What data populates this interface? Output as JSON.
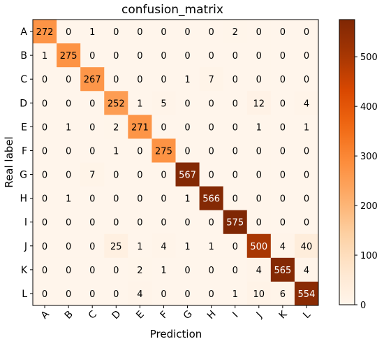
{
  "chart_data": {
    "type": "heatmap",
    "title": "confusion_matrix",
    "xlabel": "Prediction",
    "ylabel": "Real label",
    "x_labels": [
      "A",
      "B",
      "C",
      "D",
      "E",
      "F",
      "G",
      "H",
      "I",
      "J",
      "K",
      "L"
    ],
    "y_labels": [
      "A",
      "B",
      "C",
      "D",
      "E",
      "F",
      "G",
      "H",
      "I",
      "J",
      "K",
      "L"
    ],
    "matrix": [
      [
        272,
        0,
        1,
        0,
        0,
        0,
        0,
        0,
        2,
        0,
        0,
        0
      ],
      [
        1,
        275,
        0,
        0,
        0,
        0,
        0,
        0,
        0,
        0,
        0,
        0
      ],
      [
        0,
        0,
        267,
        0,
        0,
        0,
        1,
        7,
        0,
        0,
        0,
        0
      ],
      [
        0,
        0,
        0,
        252,
        1,
        5,
        0,
        0,
        0,
        12,
        0,
        4
      ],
      [
        0,
        1,
        0,
        2,
        271,
        0,
        0,
        0,
        0,
        1,
        0,
        1
      ],
      [
        0,
        0,
        0,
        1,
        0,
        275,
        0,
        0,
        0,
        0,
        0,
        0
      ],
      [
        0,
        0,
        7,
        0,
        0,
        0,
        567,
        0,
        0,
        0,
        0,
        0
      ],
      [
        0,
        1,
        0,
        0,
        0,
        0,
        1,
        566,
        0,
        0,
        0,
        0
      ],
      [
        0,
        0,
        0,
        0,
        0,
        0,
        0,
        0,
        575,
        0,
        0,
        0
      ],
      [
        0,
        0,
        0,
        25,
        1,
        4,
        1,
        1,
        0,
        500,
        4,
        40
      ],
      [
        0,
        0,
        0,
        0,
        2,
        1,
        0,
        0,
        0,
        4,
        565,
        4
      ],
      [
        0,
        0,
        0,
        0,
        4,
        0,
        0,
        0,
        1,
        10,
        6,
        554
      ]
    ],
    "colormap": "Oranges",
    "colors": {
      "low": "#fff5eb",
      "mid": "#fd8d3c",
      "high": "#7f2704"
    },
    "colorbar": {
      "min": 0,
      "max": 575,
      "ticks": [
        0,
        100,
        200,
        300,
        400,
        500
      ]
    },
    "x_tick_rotation_deg": -45
  }
}
